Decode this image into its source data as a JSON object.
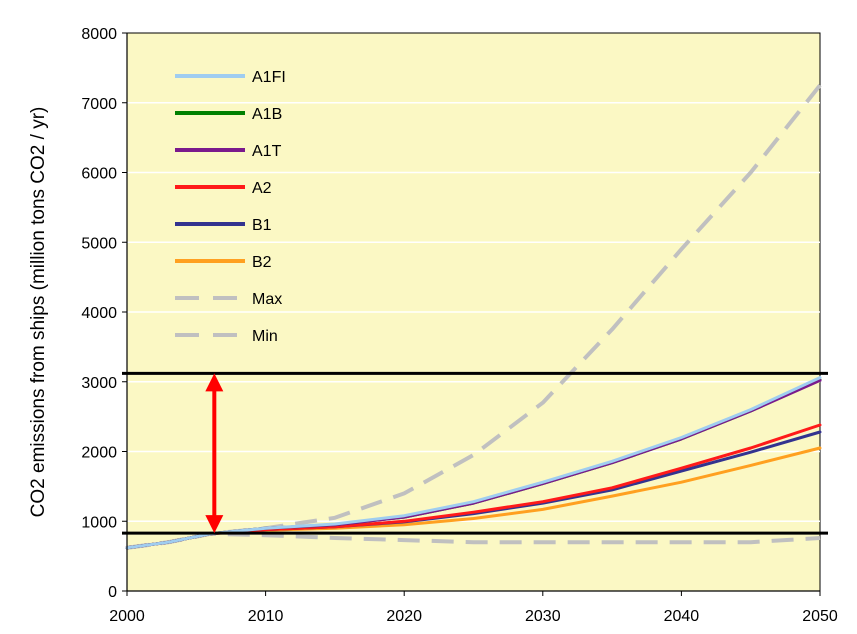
{
  "chart_data": {
    "type": "line",
    "title": "",
    "xlabel": "",
    "ylabel": "CO2 emissions from ships (million tons CO2 / yr)",
    "xlim": [
      2000,
      2050
    ],
    "ylim": [
      0,
      8000
    ],
    "xticks": [
      2000,
      2010,
      2020,
      2030,
      2040,
      2050
    ],
    "yticks": [
      0,
      1000,
      2000,
      3000,
      4000,
      5000,
      6000,
      7000,
      8000
    ],
    "x": [
      2000,
      2003,
      2006,
      2010,
      2015,
      2020,
      2025,
      2030,
      2035,
      2040,
      2045,
      2050
    ],
    "grid": "horizontal",
    "legend_position": "top-left",
    "background_color": "#fbf8c4",
    "series": [
      {
        "name": "A1FI",
        "color": "#9fcdf0",
        "dash": "solid",
        "values": [
          620,
          700,
          820,
          900,
          960,
          1080,
          1280,
          1560,
          1860,
          2200,
          2600,
          3060
        ]
      },
      {
        "name": "A1B",
        "color": "#008000",
        "dash": "solid",
        "values": [
          620,
          700,
          820,
          900,
          950,
          1060,
          1260,
          1540,
          1840,
          2180,
          2580,
          3030
        ]
      },
      {
        "name": "A1T",
        "color": "#7a1a8c",
        "dash": "solid",
        "values": [
          620,
          700,
          820,
          900,
          950,
          1060,
          1260,
          1540,
          1840,
          2180,
          2580,
          3020
        ]
      },
      {
        "name": "A2",
        "color": "#ff1a1a",
        "dash": "solid",
        "values": [
          620,
          700,
          820,
          880,
          920,
          1000,
          1130,
          1280,
          1480,
          1760,
          2050,
          2380
        ]
      },
      {
        "name": "B1",
        "color": "#33338f",
        "dash": "solid",
        "values": [
          620,
          700,
          820,
          880,
          920,
          990,
          1110,
          1260,
          1450,
          1720,
          1990,
          2280
        ]
      },
      {
        "name": "B2",
        "color": "#ffa020",
        "dash": "solid",
        "values": [
          620,
          700,
          820,
          870,
          900,
          950,
          1040,
          1170,
          1360,
          1560,
          1800,
          2050
        ]
      },
      {
        "name": "Max",
        "color": "#c0c0c0",
        "dash": "dashed",
        "values": [
          620,
          700,
          820,
          900,
          1050,
          1400,
          1950,
          2700,
          3750,
          4900,
          6000,
          7250
        ]
      },
      {
        "name": "Min",
        "color": "#c0c0c0",
        "dash": "dashed",
        "values": [
          620,
          700,
          820,
          800,
          760,
          730,
          700,
          700,
          700,
          700,
          700,
          760
        ]
      }
    ],
    "annotations": {
      "reference_lines": [
        {
          "y": 3120,
          "color": "#000000"
        },
        {
          "y": 830,
          "color": "#000000"
        }
      ],
      "double_arrow": {
        "x": 2006.3,
        "y_from": 830,
        "y_to": 3120,
        "color": "#ff0000"
      }
    }
  }
}
